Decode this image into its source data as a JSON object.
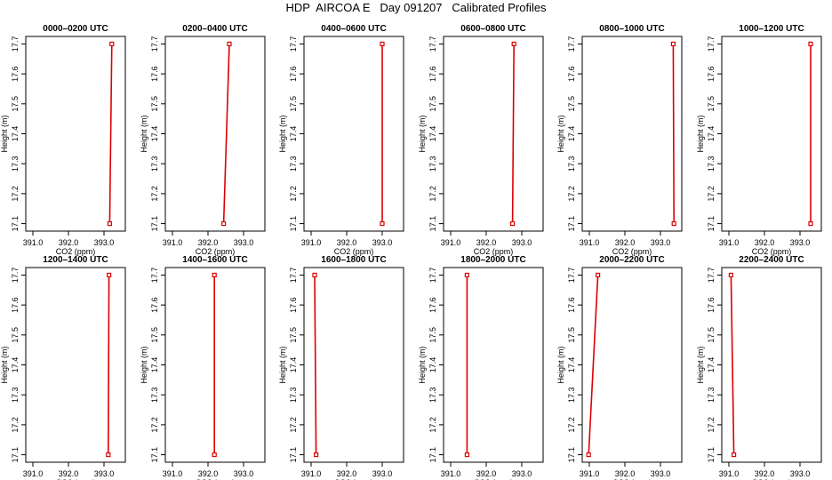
{
  "figure": {
    "title": "HDP  AIRCOA E   Day 091207   Calibrated Profiles"
  },
  "axes": {
    "xlabel": "CO2 (ppm)",
    "ylabel": "Height (m)",
    "xlim": [
      390.8,
      393.6
    ],
    "ylim": [
      17.075,
      17.725
    ],
    "xticks": [
      "391.0",
      "392.0",
      "393.0"
    ],
    "xtick_values": [
      391.0,
      392.0,
      393.0
    ],
    "yticks": [
      "17.1",
      "17.2",
      "17.3",
      "17.4",
      "17.5",
      "17.6",
      "17.7"
    ],
    "ytick_values": [
      17.1,
      17.2,
      17.3,
      17.4,
      17.5,
      17.6,
      17.7
    ]
  },
  "colors": {
    "series": "#dd0000",
    "axes": "#000000"
  },
  "chart_data": [
    {
      "type": "line",
      "title": "0000–0200 UTC",
      "x": [
        393.16,
        393.22
      ],
      "y": [
        17.1,
        17.7
      ]
    },
    {
      "type": "line",
      "title": "0200–0400 UTC",
      "x": [
        392.44,
        392.6
      ],
      "y": [
        17.1,
        17.7
      ]
    },
    {
      "type": "line",
      "title": "0400–0600 UTC",
      "x": [
        393.0,
        393.0
      ],
      "y": [
        17.1,
        17.7
      ]
    },
    {
      "type": "line",
      "title": "0600–0800 UTC",
      "x": [
        392.74,
        392.78
      ],
      "y": [
        17.1,
        17.7
      ]
    },
    {
      "type": "line",
      "title": "0800–1000 UTC",
      "x": [
        393.38,
        393.36
      ],
      "y": [
        17.1,
        17.7
      ]
    },
    {
      "type": "line",
      "title": "1000–1200 UTC",
      "x": [
        393.3,
        393.3
      ],
      "y": [
        17.1,
        17.7
      ]
    },
    {
      "type": "line",
      "title": "1200–1400 UTC",
      "x": [
        393.12,
        393.14
      ],
      "y": [
        17.1,
        17.7
      ]
    },
    {
      "type": "line",
      "title": "1400–1600 UTC",
      "x": [
        392.18,
        392.18
      ],
      "y": [
        17.1,
        17.7
      ]
    },
    {
      "type": "line",
      "title": "1600–1800 UTC",
      "x": [
        391.14,
        391.1
      ],
      "y": [
        17.1,
        17.7
      ]
    },
    {
      "type": "line",
      "title": "1800–2000 UTC",
      "x": [
        391.46,
        391.46
      ],
      "y": [
        17.1,
        17.7
      ]
    },
    {
      "type": "line",
      "title": "2000–2200 UTC",
      "x": [
        390.98,
        391.24
      ],
      "y": [
        17.1,
        17.7
      ]
    },
    {
      "type": "line",
      "title": "2200–2400 UTC",
      "x": [
        391.14,
        391.06
      ],
      "y": [
        17.1,
        17.7
      ]
    }
  ]
}
